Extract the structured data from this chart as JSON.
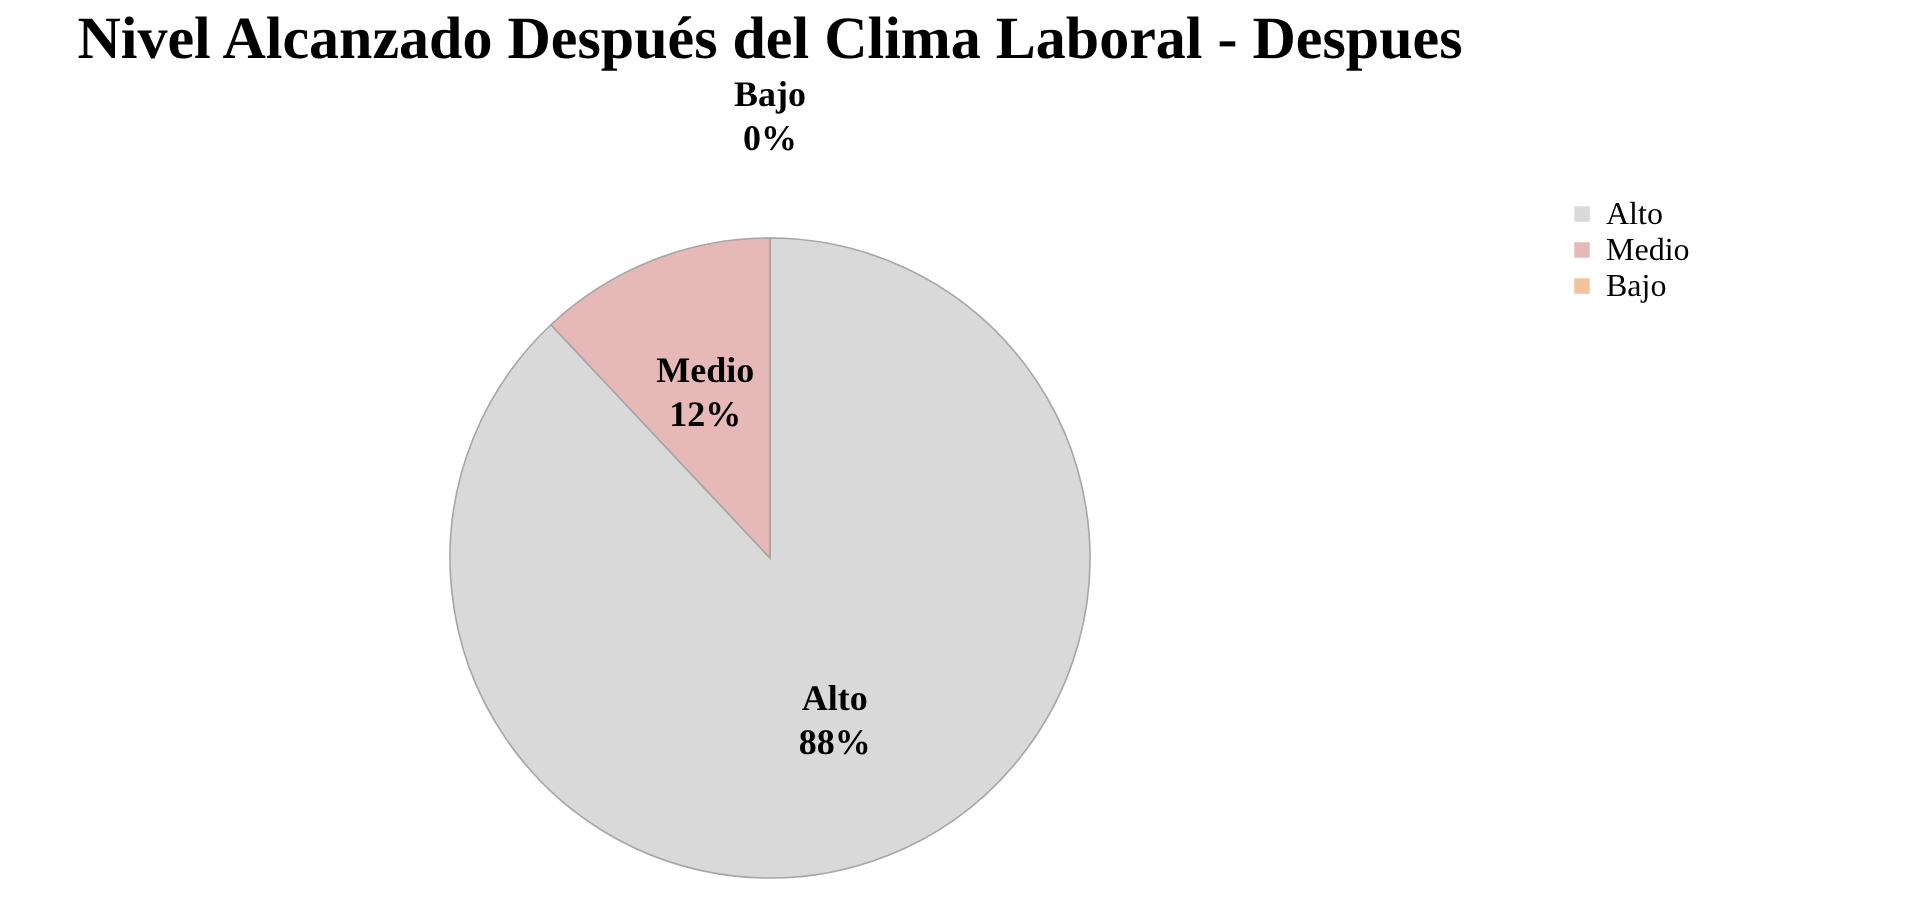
{
  "chart_data": {
    "type": "pie",
    "title": "Nivel Alcanzado Después del Clima Laboral - Despues",
    "categories": [
      "Alto",
      "Medio",
      "Bajo"
    ],
    "values": [
      88,
      12,
      0
    ],
    "colors": [
      "#d9d9d9",
      "#e6b9b8",
      "#f2c49c"
    ],
    "value_labels": [
      "88%",
      "12%",
      "0%"
    ],
    "legend": "right"
  }
}
